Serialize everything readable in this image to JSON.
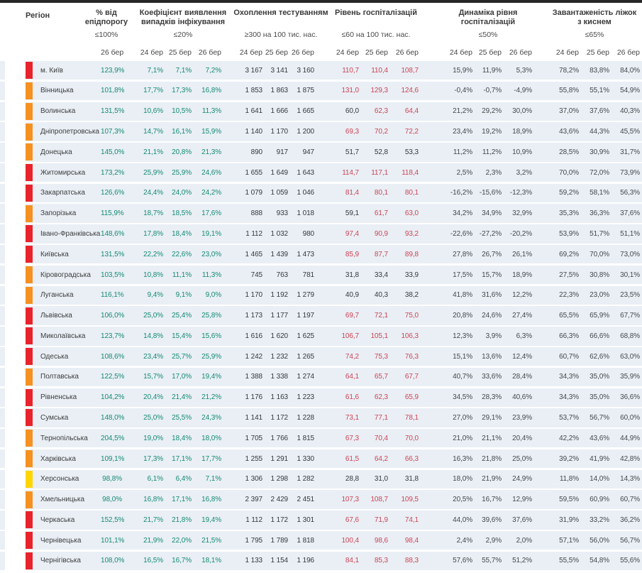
{
  "colors": {
    "red_marker": "#e8232b",
    "orange_marker": "#f59120",
    "yellow_marker": "#ffd600",
    "green_value": "#168a74",
    "red_value": "#cf4355",
    "row_band": "#e9eff5",
    "top_bar": "#262626"
  },
  "header": {
    "region_label": "Регіон",
    "groups": [
      {
        "id": "epid",
        "title": "% від епідпорогу",
        "threshold": "≤100%",
        "dates": [
          "26 бер"
        ]
      },
      {
        "id": "detect",
        "title": "Коефіцієнт виявлення випадків інфікування",
        "threshold": "≤20%",
        "dates": [
          "24 бер",
          "25 бер",
          "26 бер"
        ]
      },
      {
        "id": "testing",
        "title": "Охоплення тестуванням",
        "threshold": "≥300 на 100 тис. нас.",
        "dates": [
          "24 бер",
          "25 бер",
          "26 бер"
        ]
      },
      {
        "id": "hosp",
        "title": "Рівень госпіталізацій",
        "threshold": "≤60 на 100 тис. нас.",
        "dates": [
          "24 бер",
          "25 бер",
          "26 бер"
        ]
      },
      {
        "id": "dyn",
        "title": "Динаміка рівня госпіталізацій",
        "threshold": "≤50%",
        "dates": [
          "24 бер",
          "25 бер",
          "26 бер"
        ]
      },
      {
        "id": "beds",
        "title": "Завантаженість ліжок з киснем",
        "threshold": "≤65%",
        "dates": [
          "24 бер",
          "25 бер",
          "26 бер"
        ]
      }
    ]
  },
  "hosp_red_above": 60,
  "rows": [
    {
      "region": "м. Київ",
      "marker": "red",
      "epid": "123,9%",
      "detect": [
        "7,1%",
        "7,1%",
        "7,2%"
      ],
      "testing": [
        "3 167",
        "3 141",
        "3 160"
      ],
      "hosp": [
        "110,7",
        "110,4",
        "108,7"
      ],
      "dyn": [
        "15,9%",
        "11,9%",
        "5,3%"
      ],
      "beds": [
        "78,2%",
        "83,8%",
        "84,0%"
      ]
    },
    {
      "region": "Вінницька",
      "marker": "orange",
      "epid": "101,8%",
      "detect": [
        "17,7%",
        "17,3%",
        "16,8%"
      ],
      "testing": [
        "1 853",
        "1 863",
        "1 875"
      ],
      "hosp": [
        "131,0",
        "129,3",
        "124,6"
      ],
      "dyn": [
        "-0,4%",
        "-0,7%",
        "-4,9%"
      ],
      "beds": [
        "55,8%",
        "55,1%",
        "54,9%"
      ]
    },
    {
      "region": "Волинська",
      "marker": "orange",
      "epid": "131,5%",
      "detect": [
        "10,6%",
        "10,5%",
        "11,3%"
      ],
      "testing": [
        "1 641",
        "1 666",
        "1 665"
      ],
      "hosp": [
        "60,0",
        "62,3",
        "64,4"
      ],
      "dyn": [
        "21,2%",
        "29,2%",
        "30,0%"
      ],
      "beds": [
        "37,0%",
        "37,6%",
        "40,3%"
      ]
    },
    {
      "region": "Дніпропетровська",
      "marker": "orange",
      "epid": "107,3%",
      "detect": [
        "14,7%",
        "16,1%",
        "15,9%"
      ],
      "testing": [
        "1 140",
        "1 170",
        "1 200"
      ],
      "hosp": [
        "69,3",
        "70,2",
        "72,2"
      ],
      "dyn": [
        "23,4%",
        "19,2%",
        "18,9%"
      ],
      "beds": [
        "43,6%",
        "44,3%",
        "45,5%"
      ]
    },
    {
      "region": "Донецька",
      "marker": "orange",
      "epid": "145,0%",
      "detect": [
        "21,1%",
        "20,8%",
        "21,3%"
      ],
      "testing": [
        "890",
        "917",
        "947"
      ],
      "hosp": [
        "51,7",
        "52,8",
        "53,3"
      ],
      "dyn": [
        "11,2%",
        "11,2%",
        "10,9%"
      ],
      "beds": [
        "28,5%",
        "30,9%",
        "31,7%"
      ]
    },
    {
      "region": "Житомирська",
      "marker": "red",
      "epid": "173,2%",
      "detect": [
        "25,9%",
        "25,9%",
        "24,6%"
      ],
      "testing": [
        "1 655",
        "1 649",
        "1 643"
      ],
      "hosp": [
        "114,7",
        "117,1",
        "118,4"
      ],
      "dyn": [
        "2,5%",
        "2,3%",
        "3,2%"
      ],
      "beds": [
        "70,0%",
        "72,0%",
        "73,9%"
      ]
    },
    {
      "region": "Закарпатська",
      "marker": "red",
      "epid": "126,6%",
      "detect": [
        "24,4%",
        "24,0%",
        "24,2%"
      ],
      "testing": [
        "1 079",
        "1 059",
        "1 046"
      ],
      "hosp": [
        "81,4",
        "80,1",
        "80,1"
      ],
      "dyn": [
        "-16,2%",
        "-15,6%",
        "-12,3%"
      ],
      "beds": [
        "59,2%",
        "58,1%",
        "56,3%"
      ]
    },
    {
      "region": "Запорізька",
      "marker": "orange",
      "epid": "115,9%",
      "detect": [
        "18,7%",
        "18,5%",
        "17,6%"
      ],
      "testing": [
        "888",
        "933",
        "1 018"
      ],
      "hosp": [
        "59,1",
        "61,7",
        "63,0"
      ],
      "dyn": [
        "34,2%",
        "34,9%",
        "32,9%"
      ],
      "beds": [
        "35,3%",
        "36,3%",
        "37,6%"
      ]
    },
    {
      "region": "Івано-Франківська",
      "marker": "red",
      "epid": "148,6%",
      "detect": [
        "17,8%",
        "18,4%",
        "19,1%"
      ],
      "testing": [
        "1 112",
        "1 032",
        "980"
      ],
      "hosp": [
        "97,4",
        "90,9",
        "93,2"
      ],
      "dyn": [
        "-22,6%",
        "-27,2%",
        "-20,2%"
      ],
      "beds": [
        "53,9%",
        "51,7%",
        "51,1%"
      ]
    },
    {
      "region": "Київська",
      "marker": "red",
      "epid": "131,5%",
      "detect": [
        "22,2%",
        "22,6%",
        "23,0%"
      ],
      "testing": [
        "1 465",
        "1 439",
        "1 473"
      ],
      "hosp": [
        "85,9",
        "87,7",
        "89,8"
      ],
      "dyn": [
        "27,8%",
        "26,7%",
        "26,1%"
      ],
      "beds": [
        "69,2%",
        "70,0%",
        "73,0%"
      ]
    },
    {
      "region": "Кіровоградська",
      "marker": "orange",
      "epid": "103,5%",
      "detect": [
        "10,8%",
        "11,1%",
        "11,3%"
      ],
      "testing": [
        "745",
        "763",
        "781"
      ],
      "hosp": [
        "31,8",
        "33,4",
        "33,9"
      ],
      "dyn": [
        "17,5%",
        "15,7%",
        "18,9%"
      ],
      "beds": [
        "27,5%",
        "30,8%",
        "30,1%"
      ]
    },
    {
      "region": "Луганська",
      "marker": "orange",
      "epid": "116,1%",
      "detect": [
        "9,4%",
        "9,1%",
        "9,0%"
      ],
      "testing": [
        "1 170",
        "1 192",
        "1 279"
      ],
      "hosp": [
        "40,9",
        "40,3",
        "38,2"
      ],
      "dyn": [
        "41,8%",
        "31,6%",
        "12,2%"
      ],
      "beds": [
        "22,3%",
        "23,0%",
        "23,5%"
      ]
    },
    {
      "region": "Львівська",
      "marker": "red",
      "epid": "106,0%",
      "detect": [
        "25,0%",
        "25,4%",
        "25,8%"
      ],
      "testing": [
        "1 173",
        "1 177",
        "1 197"
      ],
      "hosp": [
        "69,7",
        "72,1",
        "75,0"
      ],
      "dyn": [
        "20,8%",
        "24,6%",
        "27,4%"
      ],
      "beds": [
        "65,5%",
        "65,9%",
        "67,7%"
      ]
    },
    {
      "region": "Миколаївська",
      "marker": "red",
      "epid": "123,7%",
      "detect": [
        "14,8%",
        "15,4%",
        "15,6%"
      ],
      "testing": [
        "1 616",
        "1 620",
        "1 625"
      ],
      "hosp": [
        "106,7",
        "105,1",
        "106,3"
      ],
      "dyn": [
        "12,3%",
        "3,9%",
        "6,3%"
      ],
      "beds": [
        "66,3%",
        "66,6%",
        "68,8%"
      ]
    },
    {
      "region": "Одеська",
      "marker": "red",
      "epid": "108,6%",
      "detect": [
        "23,4%",
        "25,7%",
        "25,9%"
      ],
      "testing": [
        "1 242",
        "1 232",
        "1 265"
      ],
      "hosp": [
        "74,2",
        "75,3",
        "76,3"
      ],
      "dyn": [
        "15,1%",
        "13,6%",
        "12,4%"
      ],
      "beds": [
        "60,7%",
        "62,6%",
        "63,0%"
      ]
    },
    {
      "region": "Полтавська",
      "marker": "orange",
      "epid": "122,5%",
      "detect": [
        "15,7%",
        "17,0%",
        "19,4%"
      ],
      "testing": [
        "1 388",
        "1 338",
        "1 274"
      ],
      "hosp": [
        "64,1",
        "65,7",
        "67,7"
      ],
      "dyn": [
        "40,7%",
        "33,6%",
        "28,4%"
      ],
      "beds": [
        "34,3%",
        "35,0%",
        "35,9%"
      ]
    },
    {
      "region": "Рівненська",
      "marker": "red",
      "epid": "104,2%",
      "detect": [
        "20,4%",
        "21,4%",
        "21,2%"
      ],
      "testing": [
        "1 176",
        "1 163",
        "1 223"
      ],
      "hosp": [
        "61,6",
        "62,3",
        "65,9"
      ],
      "dyn": [
        "34,5%",
        "28,3%",
        "40,6%"
      ],
      "beds": [
        "34,3%",
        "35,0%",
        "36,6%"
      ]
    },
    {
      "region": "Сумська",
      "marker": "red",
      "epid": "148,0%",
      "detect": [
        "25,0%",
        "25,5%",
        "24,3%"
      ],
      "testing": [
        "1 141",
        "1 172",
        "1 228"
      ],
      "hosp": [
        "73,1",
        "77,1",
        "78,1"
      ],
      "dyn": [
        "27,0%",
        "29,1%",
        "23,9%"
      ],
      "beds": [
        "53,7%",
        "56,7%",
        "60,0%"
      ]
    },
    {
      "region": "Тернопільська",
      "marker": "orange",
      "epid": "204,5%",
      "detect": [
        "19,0%",
        "18,4%",
        "18,0%"
      ],
      "testing": [
        "1 705",
        "1 766",
        "1 815"
      ],
      "hosp": [
        "67,3",
        "70,4",
        "70,0"
      ],
      "dyn": [
        "21,0%",
        "21,1%",
        "20,4%"
      ],
      "beds": [
        "42,2%",
        "43,6%",
        "44,9%"
      ]
    },
    {
      "region": "Харківська",
      "marker": "orange",
      "epid": "109,1%",
      "detect": [
        "17,3%",
        "17,1%",
        "17,7%"
      ],
      "testing": [
        "1 255",
        "1 291",
        "1 330"
      ],
      "hosp": [
        "61,5",
        "64,2",
        "66,3"
      ],
      "dyn": [
        "16,3%",
        "21,8%",
        "25,0%"
      ],
      "beds": [
        "39,2%",
        "41,9%",
        "42,8%"
      ]
    },
    {
      "region": "Херсонська",
      "marker": "yellow",
      "epid": "98,8%",
      "detect": [
        "6,1%",
        "6,4%",
        "7,1%"
      ],
      "testing": [
        "1 306",
        "1 298",
        "1 282"
      ],
      "hosp": [
        "28,8",
        "31,0",
        "31,8"
      ],
      "dyn": [
        "18,0%",
        "21,9%",
        "24,9%"
      ],
      "beds": [
        "11,8%",
        "14,0%",
        "14,3%"
      ]
    },
    {
      "region": "Хмельницька",
      "marker": "orange",
      "epid": "98,0%",
      "detect": [
        "16,8%",
        "17,1%",
        "16,8%"
      ],
      "testing": [
        "2 397",
        "2 429",
        "2 451"
      ],
      "hosp": [
        "107,3",
        "108,7",
        "109,5"
      ],
      "dyn": [
        "20,5%",
        "16,7%",
        "12,9%"
      ],
      "beds": [
        "59,5%",
        "60,9%",
        "60,7%"
      ]
    },
    {
      "region": "Черкаська",
      "marker": "red",
      "epid": "152,5%",
      "detect": [
        "21,7%",
        "21,8%",
        "19,4%"
      ],
      "testing": [
        "1 112",
        "1 172",
        "1 301"
      ],
      "hosp": [
        "67,6",
        "71,9",
        "74,1"
      ],
      "dyn": [
        "44,0%",
        "39,6%",
        "37,6%"
      ],
      "beds": [
        "31,9%",
        "33,2%",
        "36,2%"
      ]
    },
    {
      "region": "Чернівецька",
      "marker": "red",
      "epid": "101,1%",
      "detect": [
        "21,9%",
        "22,0%",
        "21,5%"
      ],
      "testing": [
        "1 795",
        "1 789",
        "1 818"
      ],
      "hosp": [
        "100,4",
        "98,6",
        "98,4"
      ],
      "dyn": [
        "2,4%",
        "2,9%",
        "2,0%"
      ],
      "beds": [
        "57,1%",
        "56,0%",
        "56,7%"
      ]
    },
    {
      "region": "Чернігівська",
      "marker": "red",
      "epid": "108,0%",
      "detect": [
        "16,5%",
        "16,7%",
        "18,1%"
      ],
      "testing": [
        "1 133",
        "1 154",
        "1 196"
      ],
      "hosp": [
        "84,1",
        "85,3",
        "88,3"
      ],
      "dyn": [
        "57,6%",
        "55,7%",
        "51,2%"
      ],
      "beds": [
        "55,5%",
        "54,8%",
        "55,6%"
      ]
    }
  ]
}
